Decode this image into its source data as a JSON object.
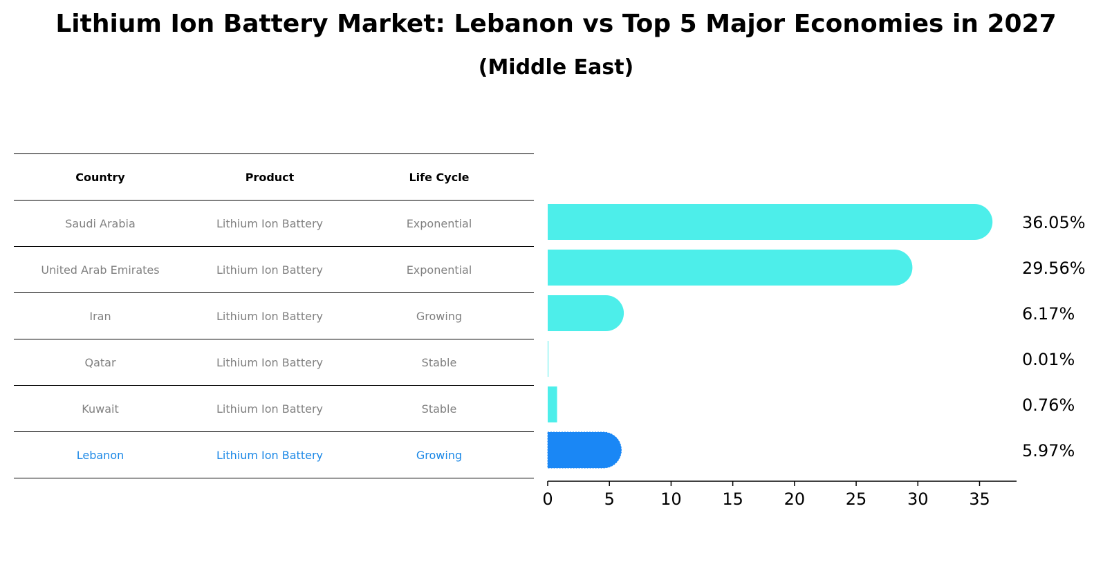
{
  "title": "Lithium Ion Battery Market: Lebanon vs Top 5 Major Economies in 2027",
  "subtitle": "(Middle East)",
  "table": {
    "headers": [
      "Country",
      "Product",
      "Life Cycle"
    ],
    "rows": [
      [
        "Saudi Arabia",
        "Lithium Ion Battery",
        "Exponential"
      ],
      [
        "United Arab Emirates",
        "Lithium Ion Battery",
        "Exponential"
      ],
      [
        "Iran",
        "Lithium Ion Battery",
        "Growing"
      ],
      [
        "Qatar",
        "Lithium Ion Battery",
        "Stable"
      ],
      [
        "Kuwait",
        "Lithium Ion Battery",
        "Stable"
      ],
      [
        "Lebanon",
        "Lithium Ion Battery",
        "Growing"
      ]
    ]
  },
  "colors": {
    "bar": "#4deeea",
    "highlight": "#1a87f5",
    "highlight_text": "#1a87e6",
    "muted_text": "#808080"
  },
  "chart_data": {
    "type": "bar",
    "orientation": "horizontal",
    "categories": [
      "Saudi Arabia",
      "United Arab Emirates",
      "Iran",
      "Qatar",
      "Kuwait",
      "Lebanon"
    ],
    "values": [
      36.05,
      29.56,
      6.17,
      0.01,
      0.76,
      5.97
    ],
    "value_labels": [
      "36.05%",
      "29.56%",
      "6.17%",
      "0.01%",
      "0.76%",
      "5.97%"
    ],
    "highlight": "Lebanon",
    "xlim": [
      0,
      38
    ],
    "xticks": [
      0,
      5,
      10,
      15,
      20,
      25,
      30,
      35
    ],
    "title": "Lithium Ion Battery Market: Lebanon vs Top 5 Major Economies in 2027",
    "xlabel": "",
    "ylabel": ""
  }
}
